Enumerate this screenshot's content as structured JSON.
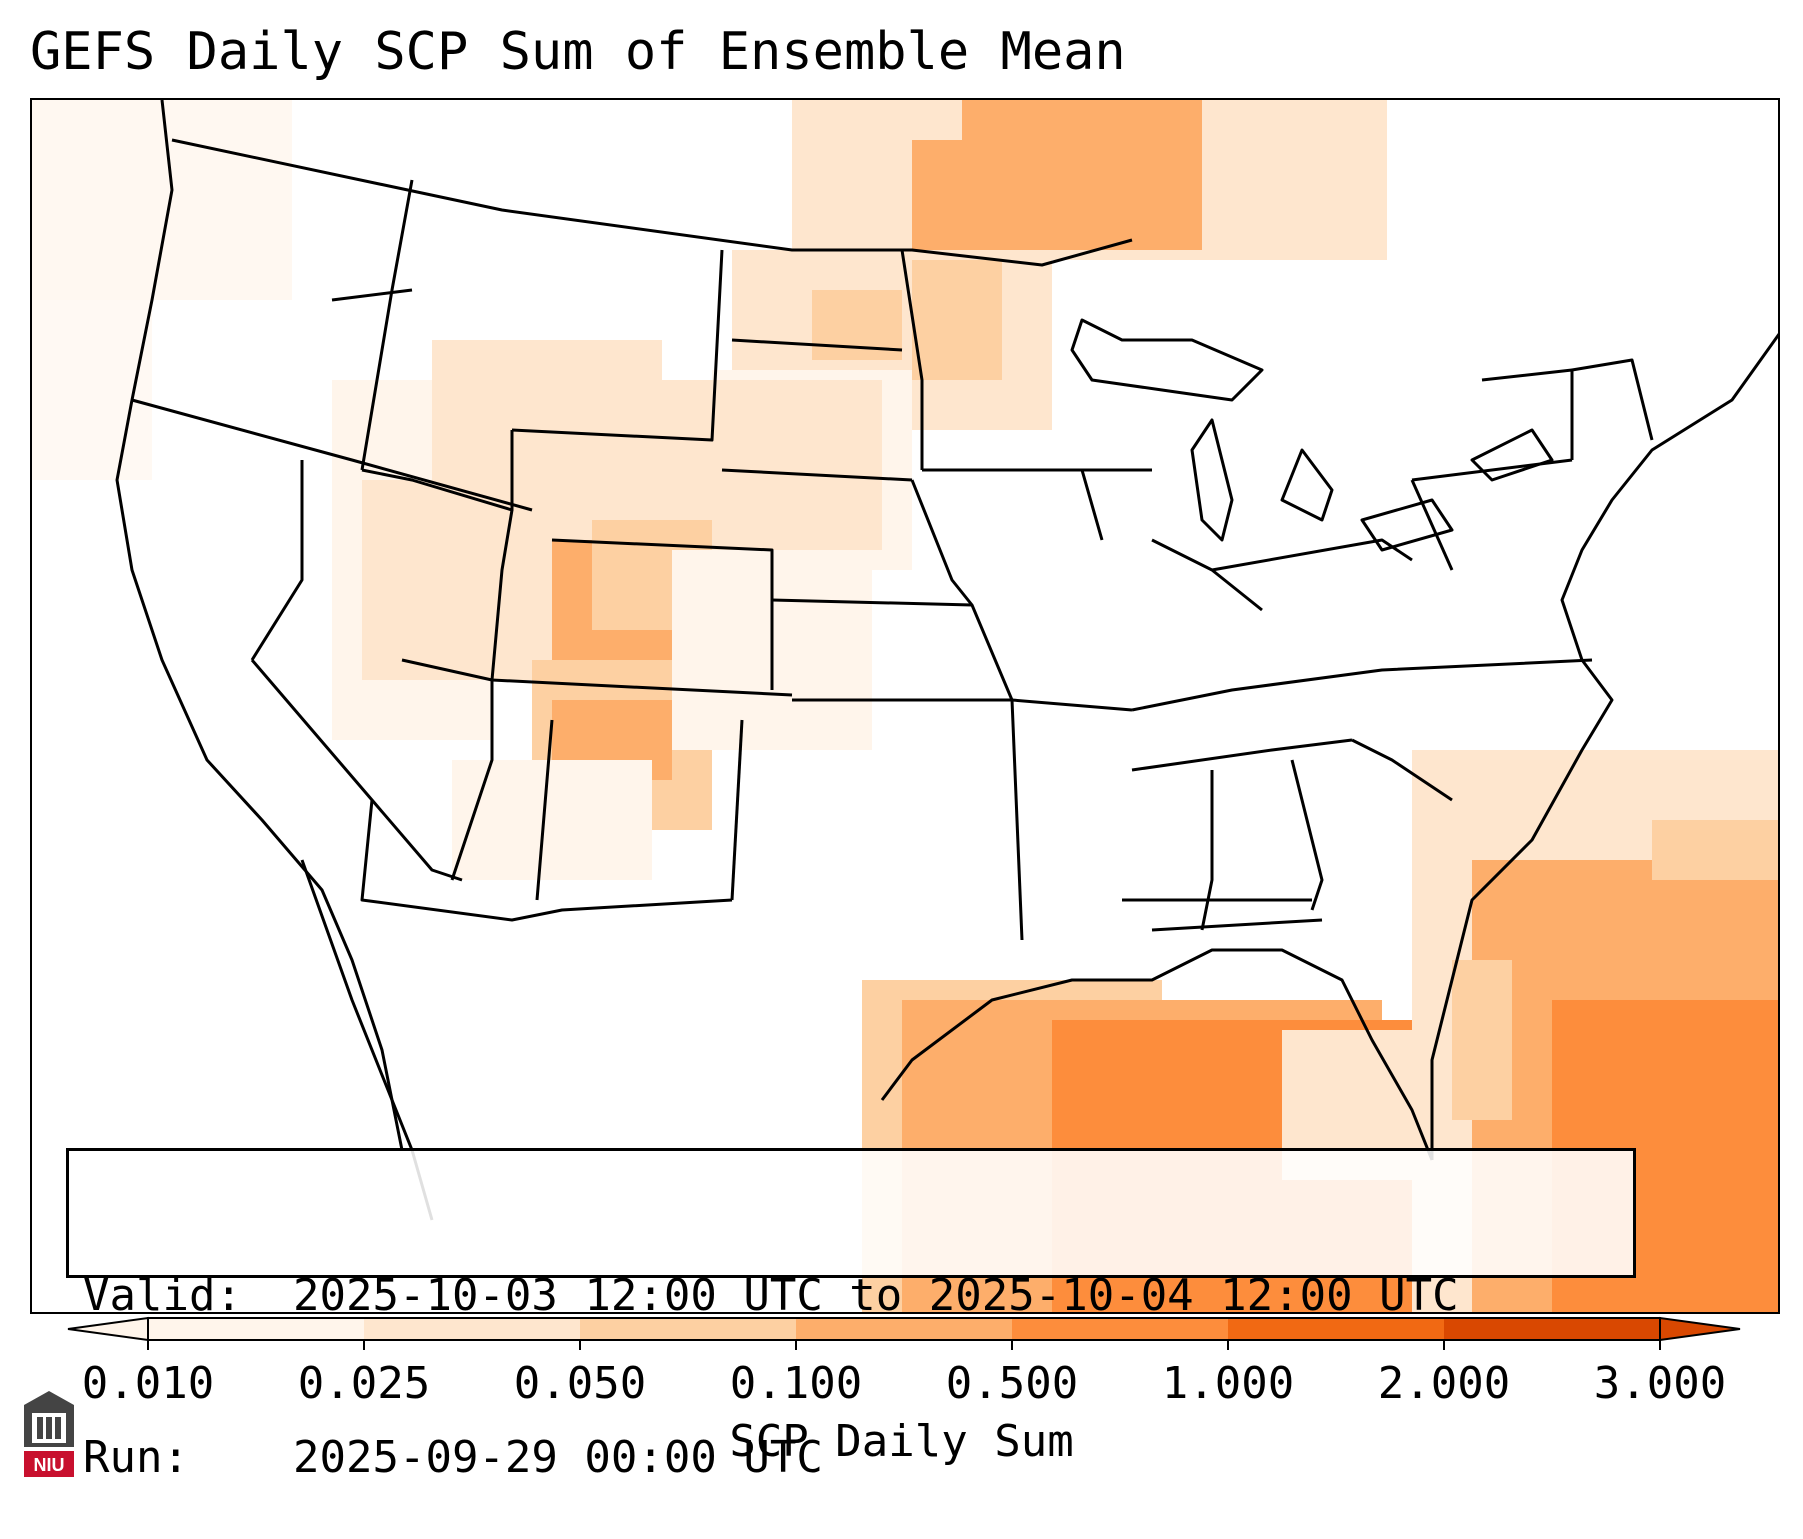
{
  "title": "GEFS Daily SCP Sum of Ensemble Mean",
  "info": {
    "valid_label": "Valid:",
    "valid_value": "2025-10-03 12:00 UTC to 2025-10-04 12:00 UTC",
    "run_label": "Run:",
    "run_value": "2025-09-29 00:00 UTC"
  },
  "colorbar": {
    "label": "SCP Daily Sum",
    "ticks": [
      "0.010",
      "0.025",
      "0.050",
      "0.100",
      "0.500",
      "1.000",
      "2.000",
      "3.000"
    ],
    "colors": [
      "#fff5eb",
      "#fee6ce",
      "#fdd0a2",
      "#fdae6b",
      "#fd8d3c",
      "#f16913",
      "#d94801"
    ],
    "extend": "both"
  },
  "logo": {
    "text": "NIU",
    "color": "#c8102e"
  },
  "colors": {
    "border": "#000000",
    "background": "#ffffff"
  }
}
